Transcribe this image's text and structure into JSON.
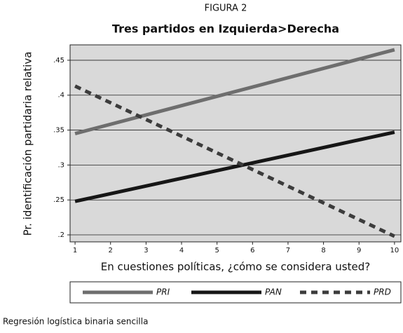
{
  "chart_data": {
    "type": "line",
    "figure_label": "FIGURA 2",
    "title": "Tres partidos en Izquierda>Derecha",
    "x_label": "En cuestiones políticas, ¿cómo se considera usted?",
    "y_label": "Pr. identificación partidaria relativa",
    "note": "Regresión logística binaria sencilla",
    "x": [
      1,
      10
    ],
    "series": [
      {
        "name": "PRI",
        "color": "#6e6e6e",
        "dashed": false,
        "values": [
          0.345,
          0.465
        ]
      },
      {
        "name": "PAN",
        "color": "#161616",
        "dashed": false,
        "values": [
          0.248,
          0.347
        ]
      },
      {
        "name": "PRD",
        "color": "#3c3c3c",
        "dashed": true,
        "values": [
          0.413,
          0.198
        ]
      }
    ],
    "xlim": [
      0.86,
      10.18
    ],
    "ylim": [
      0.19,
      0.472
    ],
    "xticks": [
      1,
      2,
      3,
      4,
      5,
      6,
      7,
      8,
      9,
      10
    ],
    "yticks": [
      {
        "value": 0.2,
        "label": ".2"
      },
      {
        "value": 0.25,
        "label": ".25"
      },
      {
        "value": 0.3,
        "label": ".3"
      },
      {
        "value": 0.35,
        "label": ".35"
      },
      {
        "value": 0.4,
        "label": ".4"
      },
      {
        "value": 0.45,
        "label": ".45"
      }
    ],
    "grid": true,
    "legend": "bottom"
  }
}
